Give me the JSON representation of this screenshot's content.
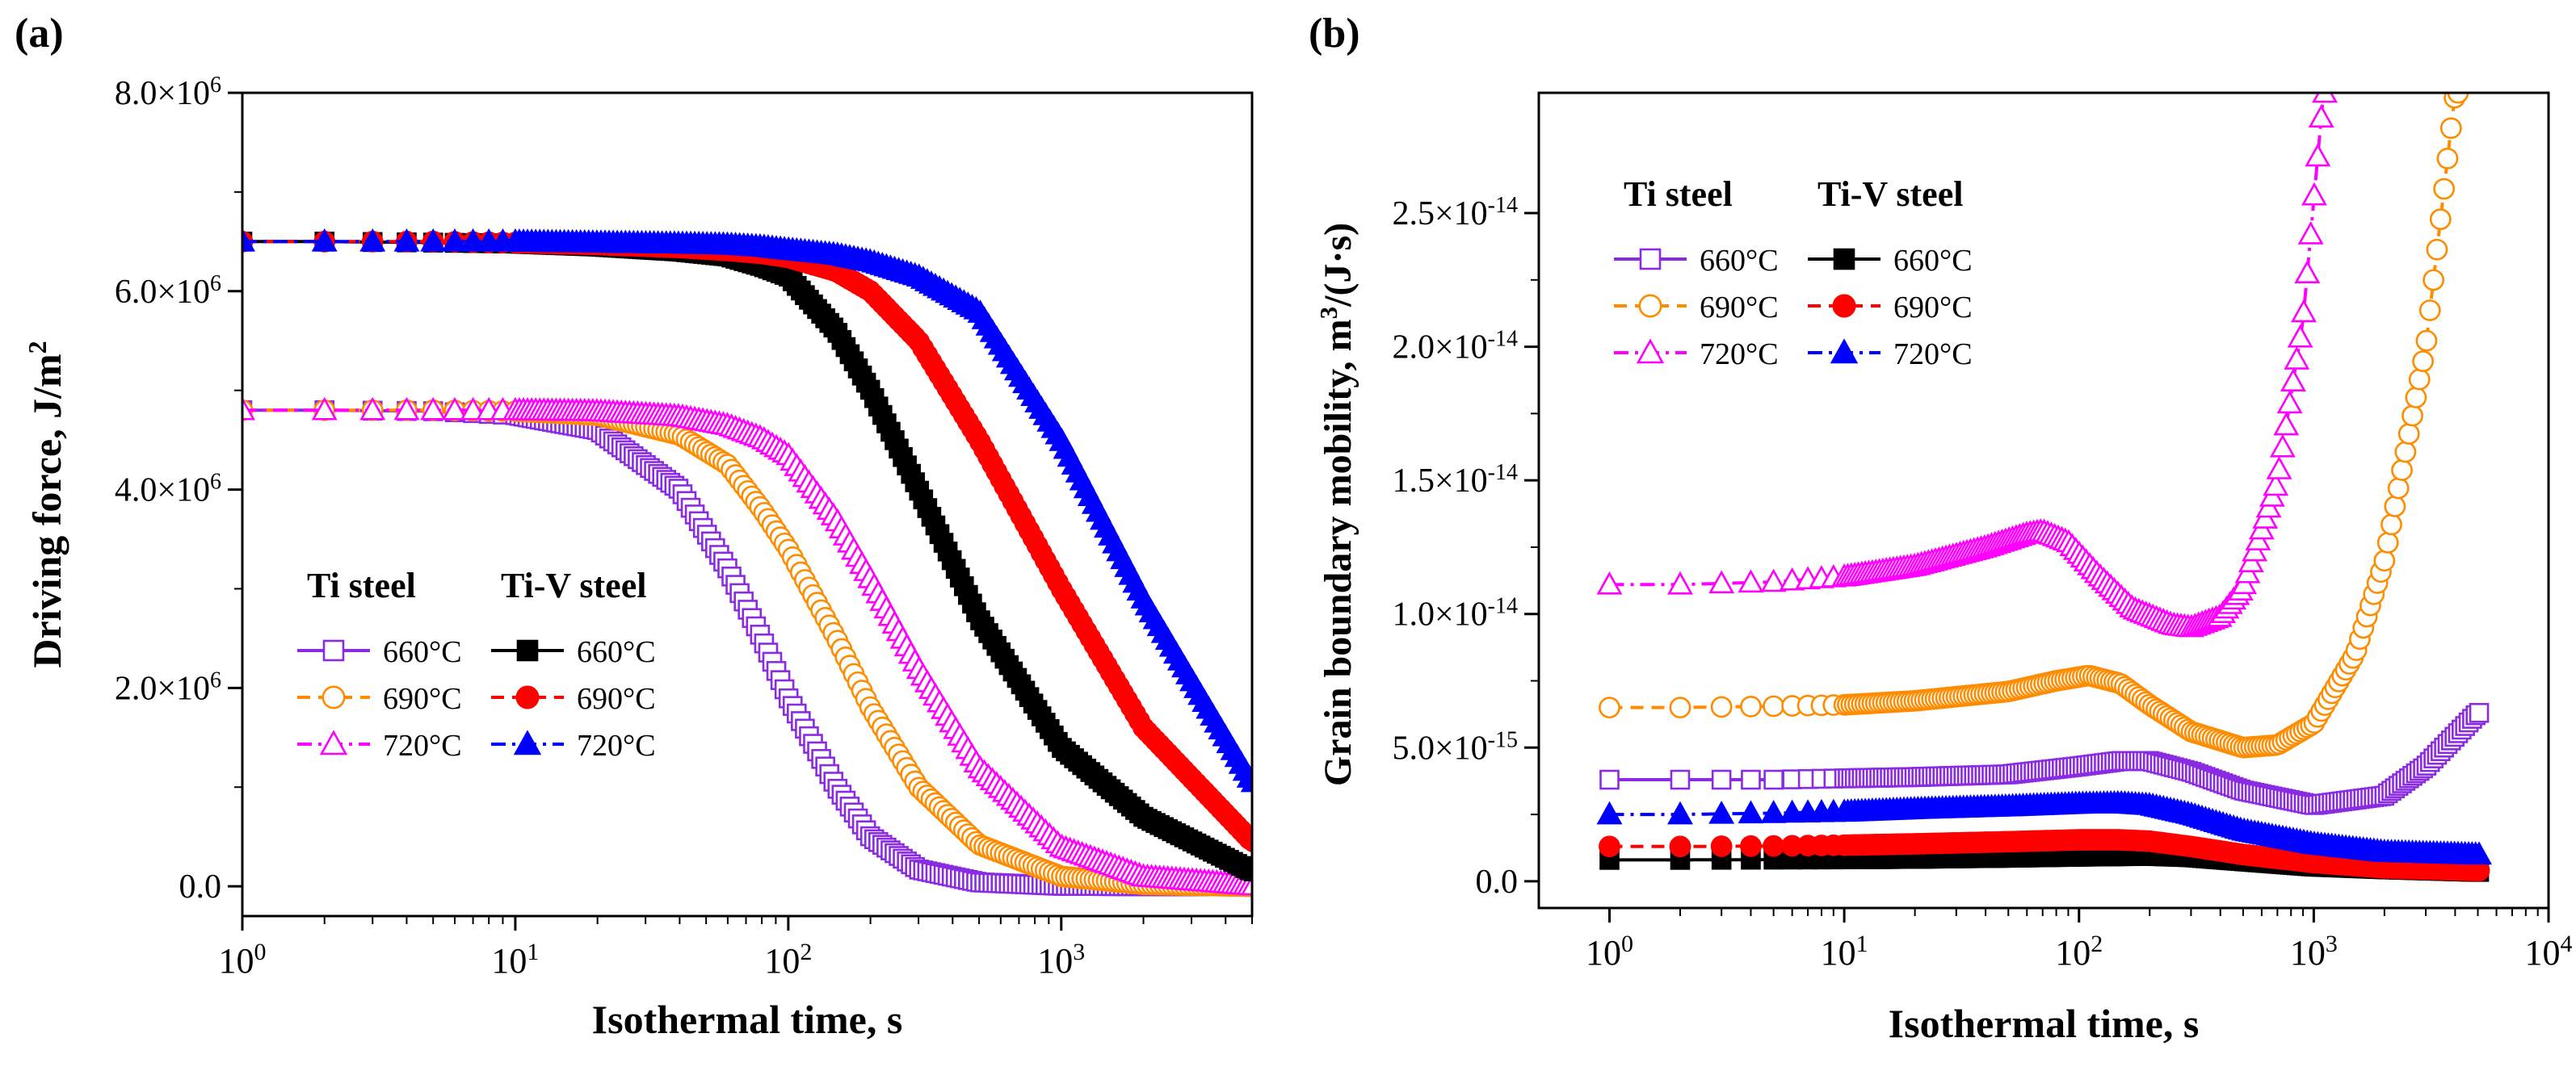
{
  "chart_data": [
    {
      "type": "line",
      "panel_label": "(a)",
      "xlabel": "Isothermal time, s",
      "ylabel_main": "Driving force, J/m",
      "ylabel_sup": "2",
      "x_scale": "log",
      "xlim": [
        1,
        5000
      ],
      "ylim": [
        -300000,
        8000000
      ],
      "x_ticks": [
        {
          "value": 1,
          "base": "10",
          "exp": "0"
        },
        {
          "value": 10,
          "base": "10",
          "exp": "1"
        },
        {
          "value": 100,
          "base": "10",
          "exp": "2"
        },
        {
          "value": 1000,
          "base": "10",
          "exp": "3"
        }
      ],
      "y_ticks": [
        {
          "value": 0,
          "text": "0.0"
        },
        {
          "value": 2000000,
          "text": "2.0×10",
          "exp": "6"
        },
        {
          "value": 4000000,
          "text": "4.0×10",
          "exp": "6"
        },
        {
          "value": 6000000,
          "text": "6.0×10",
          "exp": "6"
        },
        {
          "value": 8000000,
          "text": "8.0×10",
          "exp": "6"
        }
      ],
      "legend": {
        "placement": "lower-left",
        "group_titles": [
          "Ti steel",
          "Ti-V steel"
        ]
      },
      "series": [
        {
          "name": "660°C",
          "group": "Ti steel",
          "color": "#8a2be2",
          "marker": "square-open",
          "dash": "solid",
          "x": [
            1,
            2,
            5,
            10,
            20,
            40,
            60,
            80,
            100,
            150,
            200,
            300,
            500,
            1000,
            2000,
            5000
          ],
          "y": [
            4800000,
            4800000,
            4790000,
            4750000,
            4600000,
            4000000,
            3200000,
            2500000,
            1900000,
            1000000,
            500000,
            170000,
            40000,
            5000,
            1000,
            0
          ]
        },
        {
          "name": "690°C",
          "group": "Ti steel",
          "color": "#ff8c00",
          "marker": "circle-open",
          "dash": "dashed",
          "x": [
            1,
            2,
            5,
            10,
            20,
            40,
            60,
            80,
            100,
            150,
            200,
            300,
            500,
            1000,
            2000,
            5000
          ],
          "y": [
            4800000,
            4800000,
            4800000,
            4790000,
            4750000,
            4550000,
            4250000,
            3800000,
            3400000,
            2500000,
            1800000,
            1000000,
            420000,
            100000,
            20000,
            0
          ]
        },
        {
          "name": "720°C",
          "group": "Ti steel",
          "color": "#ff00ff",
          "marker": "triangle-open",
          "dash": "dashdot",
          "x": [
            1,
            2,
            5,
            10,
            20,
            40,
            60,
            80,
            100,
            150,
            200,
            300,
            500,
            1000,
            2000,
            5000
          ],
          "y": [
            4800000,
            4800000,
            4800000,
            4800000,
            4790000,
            4740000,
            4650000,
            4520000,
            4350000,
            3700000,
            3100000,
            2200000,
            1200000,
            400000,
            100000,
            10000
          ]
        },
        {
          "name": "660°C",
          "group": "Ti-V steel",
          "color": "#000000",
          "marker": "square-filled",
          "dash": "solid",
          "x": [
            1,
            2,
            5,
            10,
            20,
            40,
            60,
            80,
            100,
            150,
            200,
            300,
            500,
            1000,
            2000,
            5000
          ],
          "y": [
            6500000,
            6500000,
            6490000,
            6480000,
            6450000,
            6400000,
            6350000,
            6250000,
            6150000,
            5600000,
            5000000,
            4000000,
            2700000,
            1400000,
            700000,
            150000
          ]
        },
        {
          "name": "690°C",
          "group": "Ti-V steel",
          "color": "#ff0000",
          "marker": "circle-filled",
          "dash": "dashed",
          "x": [
            1,
            2,
            5,
            10,
            20,
            40,
            60,
            80,
            100,
            150,
            200,
            300,
            500,
            1000,
            2000,
            5000
          ],
          "y": [
            6500000,
            6500000,
            6500000,
            6490000,
            6470000,
            6440000,
            6410000,
            6380000,
            6340000,
            6200000,
            6000000,
            5500000,
            4500000,
            3000000,
            1600000,
            450000
          ]
        },
        {
          "name": "720°C",
          "group": "Ti-V steel",
          "color": "#0000ff",
          "marker": "triangle-filled",
          "dash": "dashdot",
          "x": [
            1,
            2,
            5,
            10,
            20,
            40,
            60,
            80,
            100,
            150,
            200,
            300,
            500,
            1000,
            2000,
            5000
          ],
          "y": [
            6500000,
            6500000,
            6500000,
            6500000,
            6490000,
            6480000,
            6470000,
            6450000,
            6420000,
            6370000,
            6300000,
            6150000,
            5800000,
            4500000,
            2900000,
            1050000
          ]
        }
      ]
    },
    {
      "type": "line",
      "panel_label": "(b)",
      "xlabel": "Isothermal time, s",
      "ylabel_main": "Grain boundary mobility, m",
      "ylabel_sup": "3",
      "ylabel_tail": "/(J·s)",
      "x_scale": "log",
      "xlim": [
        0.5,
        10000
      ],
      "ylim": [
        -1e-15,
        2.95e-14
      ],
      "x_ticks": [
        {
          "value": 1,
          "base": "10",
          "exp": "0"
        },
        {
          "value": 10,
          "base": "10",
          "exp": "1"
        },
        {
          "value": 100,
          "base": "10",
          "exp": "2"
        },
        {
          "value": 1000,
          "base": "10",
          "exp": "3"
        },
        {
          "value": 10000,
          "base": "10",
          "exp": "4"
        }
      ],
      "y_ticks": [
        {
          "value": 0,
          "text": "0.0"
        },
        {
          "value": 5e-15,
          "text": "5.0×10",
          "exp": "-15"
        },
        {
          "value": 1e-14,
          "text": "1.0×10",
          "exp": "-14"
        },
        {
          "value": 1.5e-14,
          "text": "1.5×10",
          "exp": "-14"
        },
        {
          "value": 2e-14,
          "text": "2.0×10",
          "exp": "-14"
        },
        {
          "value": 2.5e-14,
          "text": "2.5×10",
          "exp": "-14"
        }
      ],
      "legend": {
        "placement": "upper-left",
        "group_titles": [
          "Ti steel",
          "Ti-V steel"
        ]
      },
      "series": [
        {
          "name": "660°C",
          "group": "Ti steel",
          "color": "#8a2be2",
          "marker": "square-open",
          "dash": "solid",
          "x": [
            1,
            2,
            5,
            10,
            20,
            50,
            100,
            150,
            200,
            300,
            500,
            1000,
            2000,
            3000,
            5000
          ],
          "y": [
            3.8e-15,
            3.8e-15,
            3.8e-15,
            3.85e-15,
            3.9e-15,
            4e-15,
            4.3e-15,
            4.5e-15,
            4.5e-15,
            4.1e-15,
            3.4e-15,
            2.85e-15,
            3.2e-15,
            4.3e-15,
            6.3e-15
          ]
        },
        {
          "name": "690°C",
          "group": "Ti steel",
          "color": "#ff8c00",
          "marker": "circle-open",
          "dash": "dashed",
          "x": [
            1,
            2,
            5,
            10,
            20,
            50,
            80,
            110,
            150,
            200,
            300,
            500,
            700,
            1000,
            1500,
            2000,
            3000,
            4000
          ],
          "y": [
            6.5e-15,
            6.5e-15,
            6.55e-15,
            6.6e-15,
            6.75e-15,
            7.1e-15,
            7.5e-15,
            7.7e-15,
            7.4e-15,
            6.6e-15,
            5.6e-15,
            5e-15,
            5.1e-15,
            5.9e-15,
            8.5e-15,
            1.2e-14,
            2e-14,
            2.95e-14
          ]
        },
        {
          "name": "720°C",
          "group": "Ti steel",
          "color": "#ff00ff",
          "marker": "triangle-open",
          "dash": "dashdot",
          "x": [
            1,
            2,
            5,
            10,
            20,
            40,
            60,
            70,
            90,
            120,
            170,
            250,
            300,
            400,
            500,
            700,
            900,
            1100
          ],
          "y": [
            1.11e-14,
            1.11e-14,
            1.12e-14,
            1.14e-14,
            1.18e-14,
            1.25e-14,
            1.3e-14,
            1.31e-14,
            1.27e-14,
            1.15e-14,
            1.02e-14,
            9.6e-15,
            9.5e-15,
            9.9e-15,
            1.1e-14,
            1.5e-14,
            2.1e-14,
            2.95e-14
          ]
        },
        {
          "name": "660°C",
          "group": "Ti-V steel",
          "color": "#000000",
          "marker": "square-filled",
          "dash": "solid",
          "x": [
            1,
            2,
            5,
            10,
            20,
            50,
            100,
            200,
            300,
            500,
            1000,
            2000,
            5000
          ],
          "y": [
            8e-16,
            8e-16,
            8.1e-16,
            8.2e-16,
            8.4e-16,
            8.8e-16,
            9.2e-16,
            9.5e-16,
            9e-16,
            7.5e-16,
            5.5e-16,
            4.5e-16,
            3.5e-16
          ]
        },
        {
          "name": "690°C",
          "group": "Ti-V steel",
          "color": "#ff0000",
          "marker": "circle-filled",
          "dash": "dashed",
          "x": [
            1,
            2,
            5,
            10,
            20,
            50,
            100,
            150,
            200,
            300,
            500,
            1000,
            2000,
            5000
          ],
          "y": [
            1.3e-15,
            1.3e-15,
            1.32e-15,
            1.35e-15,
            1.4e-15,
            1.48e-15,
            1.55e-15,
            1.55e-15,
            1.5e-15,
            1.3e-15,
            1e-15,
            7e-16,
            5e-16,
            4e-16
          ]
        },
        {
          "name": "720°C",
          "group": "Ti-V steel",
          "color": "#0000ff",
          "marker": "triangle-filled",
          "dash": "dashdot",
          "x": [
            1,
            2,
            5,
            10,
            20,
            50,
            100,
            150,
            200,
            300,
            500,
            1000,
            2000,
            5000
          ],
          "y": [
            2.5e-15,
            2.5e-15,
            2.55e-15,
            2.6e-15,
            2.7e-15,
            2.8e-15,
            2.9e-15,
            2.92e-15,
            2.85e-15,
            2.5e-15,
            1.9e-15,
            1.4e-15,
            1.1e-15,
            1e-15
          ]
        }
      ]
    }
  ]
}
